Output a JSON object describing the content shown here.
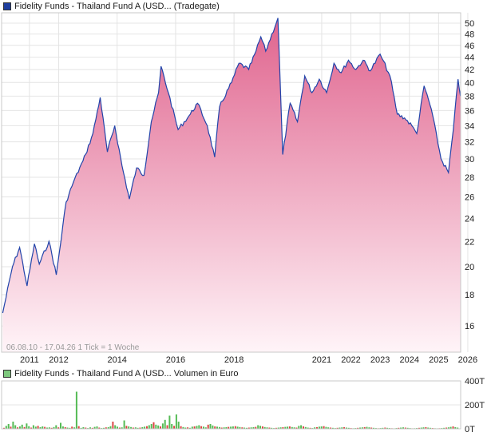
{
  "price_panel": {
    "legend": "Fidelity Funds - Thailand Fund A (USD... (Tradegate)",
    "legend_color": "#1f3f9f"
  },
  "volume_panel": {
    "legend": "Fidelity Funds - Thailand Fund A (USD... Volumen in Euro",
    "legend_color": "#7ec87e"
  },
  "footer_text": "06.08.10 - 17.04.26   1 Tick = 1 Woche",
  "colors": {
    "line": "#2244aa",
    "fill_top": "#e0648e",
    "fill_bottom": "#fff4f8",
    "grid": "#e4e4e4",
    "volume_up": "#55bb55",
    "volume_down": "#dd4444"
  },
  "chart_data": [
    {
      "type": "area",
      "scale": "log",
      "x_ticks": [
        "2011",
        "2012",
        "2014",
        "2016",
        "2018",
        "2021",
        "2022",
        "2023",
        "2024",
        "2025",
        "2026"
      ],
      "y_ticks": [
        16,
        18,
        20,
        22,
        24,
        26,
        28,
        30,
        32,
        34,
        36,
        38,
        40,
        42,
        44,
        46,
        48,
        50
      ],
      "ylim": [
        14.5,
        52
      ],
      "x": [
        "2010-08",
        "2010-12",
        "2011-03",
        "2011-06",
        "2011-09",
        "2011-11",
        "2012-03",
        "2012-06",
        "2012-10",
        "2013-01",
        "2013-05",
        "2013-06",
        "2013-09",
        "2013-12",
        "2014-03",
        "2014-06",
        "2014-09",
        "2014-12",
        "2015-03",
        "2015-06",
        "2015-09",
        "2015-12",
        "2016-01",
        "2016-04",
        "2016-08",
        "2017-01",
        "2017-04",
        "2017-08",
        "2017-11",
        "2018-01",
        "2018-06",
        "2018-09",
        "2019-01",
        "2019-04",
        "2019-06",
        "2019-08",
        "2020-01",
        "2020-03",
        "2020-06",
        "2020-09",
        "2020-12",
        "2021-03",
        "2021-06",
        "2021-09",
        "2021-12",
        "2022-03",
        "2022-06",
        "2022-09",
        "2022-12",
        "2023-03",
        "2023-07",
        "2023-11",
        "2024-02",
        "2024-05",
        "2024-08",
        "2024-10",
        "2025-01",
        "2025-04",
        "2025-08",
        "2025-11",
        "2026-01",
        "2026-03",
        "2026-04"
      ],
      "values": [
        16.8,
        20,
        21.5,
        18.6,
        21.8,
        20.2,
        22,
        19.4,
        25.5,
        27.5,
        29.8,
        30.5,
        33,
        37.8,
        30.8,
        34,
        29.2,
        25.8,
        29,
        28.2,
        34.5,
        38.5,
        42.5,
        38.5,
        33.5,
        35.5,
        37,
        34,
        30.2,
        36.5,
        40,
        43,
        42,
        45,
        47.5,
        45,
        51,
        30.5,
        37,
        34.5,
        41,
        38.5,
        40.5,
        38.5,
        43,
        41.5,
        43.5,
        42,
        43.5,
        41.8,
        44.5,
        41,
        35.5,
        35,
        34,
        33,
        39.5,
        36.2,
        30,
        28.5,
        33.5,
        40.5,
        38
      ]
    },
    {
      "type": "bar",
      "y_ticks": [
        "0T",
        "200T",
        "400T"
      ],
      "ylim": [
        0,
        400
      ],
      "values": [
        8,
        25,
        40,
        18,
        60,
        30,
        12,
        20,
        35,
        15,
        45,
        22,
        10,
        30,
        18,
        25,
        14,
        20,
        16,
        10,
        12,
        8,
        15,
        30,
        12,
        50,
        20,
        14,
        10,
        8,
        18,
        12,
        310,
        22,
        8,
        14,
        10,
        6,
        12,
        8,
        16,
        20,
        10,
        6,
        8,
        12,
        14,
        22,
        60,
        30,
        18,
        10,
        12,
        70,
        25,
        20,
        15,
        10,
        12,
        8,
        10,
        14,
        18,
        22,
        30,
        40,
        55,
        35,
        28,
        20,
        45,
        75,
        30,
        110,
        40,
        25,
        120,
        60,
        22,
        15,
        10,
        12,
        8,
        18,
        20,
        25,
        30,
        22,
        18,
        12,
        35,
        40,
        28,
        20,
        18,
        15,
        10,
        12,
        14,
        16,
        18,
        20,
        22,
        18,
        15,
        12,
        10,
        8,
        10,
        12,
        14,
        16,
        30,
        25,
        20,
        15,
        12,
        10,
        8,
        6,
        8,
        10,
        12,
        14,
        16,
        18,
        20,
        15,
        12,
        10,
        25,
        30,
        20,
        15,
        10,
        8,
        6,
        12,
        14,
        18,
        20,
        22,
        16,
        12,
        10,
        8,
        6,
        8,
        10,
        12,
        14,
        10,
        8,
        6,
        5,
        6,
        8,
        10,
        12,
        14,
        16,
        12,
        10,
        8,
        6,
        5,
        6,
        8,
        10,
        8,
        6,
        5,
        4,
        6,
        8,
        10,
        12,
        10,
        8,
        6,
        4,
        5,
        6,
        8,
        10,
        12,
        14,
        10,
        8,
        6,
        5,
        4,
        5,
        6,
        8,
        10,
        12,
        16,
        20,
        14,
        10
      ]
    }
  ]
}
